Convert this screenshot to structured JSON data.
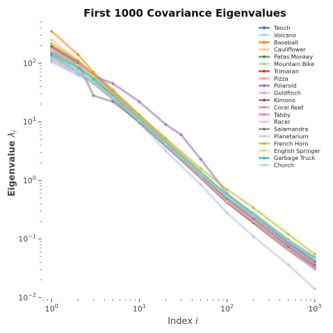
{
  "chart_data": {
    "type": "line",
    "title": "First 1000 Covariance Eigenvalues",
    "xlabel": "Index",
    "xlabel_var": "i",
    "ylabel": "Eigenvalue",
    "ylabel_var": "λ",
    "ylabel_sub": "i",
    "x_scale": "log",
    "y_scale": "log",
    "xlim": [
      0.8,
      1100
    ],
    "ylim": [
      0.01,
      500
    ],
    "x_ticks": [
      {
        "value": 1,
        "base": "10",
        "exp": "0"
      },
      {
        "value": 10,
        "base": "10",
        "exp": "1"
      },
      {
        "value": 100,
        "base": "10",
        "exp": "2"
      },
      {
        "value": 1000,
        "base": "10",
        "exp": "3"
      }
    ],
    "y_ticks": [
      {
        "value": 0.01,
        "base": "10",
        "exp": "−2"
      },
      {
        "value": 0.1,
        "base": "10",
        "exp": "−1"
      },
      {
        "value": 1,
        "base": "10",
        "exp": "0"
      },
      {
        "value": 10,
        "base": "10",
        "exp": "1"
      },
      {
        "value": 100,
        "base": "10",
        "exp": "2"
      }
    ],
    "grid": false,
    "legend_position": "top-right",
    "series": [
      {
        "name": "Tench",
        "color": "#1f77b4",
        "points": [
          [
            1,
            165
          ],
          [
            2,
            95
          ],
          [
            3,
            65
          ],
          [
            5,
            32
          ],
          [
            10,
            12
          ],
          [
            20,
            4.5
          ],
          [
            50,
            1.3
          ],
          [
            100,
            0.5
          ],
          [
            200,
            0.24
          ],
          [
            500,
            0.085
          ],
          [
            1000,
            0.042
          ]
        ]
      },
      {
        "name": "Volcano",
        "color": "#aec7e8",
        "points": [
          [
            1,
            105
          ],
          [
            2,
            62
          ],
          [
            3,
            48
          ],
          [
            5,
            25
          ],
          [
            10,
            9.5
          ],
          [
            20,
            3.2
          ],
          [
            50,
            0.85
          ],
          [
            100,
            0.28
          ],
          [
            200,
            0.11
          ],
          [
            500,
            0.036
          ],
          [
            1000,
            0.014
          ]
        ]
      },
      {
        "name": "Baseball",
        "color": "#ff7f0e",
        "points": [
          [
            1,
            350
          ],
          [
            2,
            140
          ],
          [
            3,
            70
          ],
          [
            5,
            35
          ],
          [
            10,
            13
          ],
          [
            20,
            5
          ],
          [
            50,
            1.4
          ],
          [
            100,
            0.55
          ],
          [
            200,
            0.26
          ],
          [
            500,
            0.09
          ],
          [
            1000,
            0.045
          ]
        ]
      },
      {
        "name": "Cauliflower",
        "color": "#ffbb78",
        "points": [
          [
            1,
            250
          ],
          [
            2,
            110
          ],
          [
            3,
            60
          ],
          [
            5,
            30
          ],
          [
            10,
            11
          ],
          [
            20,
            4.2
          ],
          [
            50,
            1.25
          ],
          [
            100,
            0.5
          ],
          [
            200,
            0.23
          ],
          [
            500,
            0.08
          ],
          [
            1000,
            0.038
          ]
        ]
      },
      {
        "name": "Patas Monkey",
        "color": "#2ca02c",
        "points": [
          [
            1,
            160
          ],
          [
            2,
            95
          ],
          [
            3,
            58
          ],
          [
            5,
            28
          ],
          [
            10,
            11.5
          ],
          [
            20,
            4.5
          ],
          [
            50,
            1.35
          ],
          [
            100,
            0.55
          ],
          [
            200,
            0.26
          ],
          [
            500,
            0.09
          ],
          [
            1000,
            0.046
          ]
        ]
      },
      {
        "name": "Mountain Bike",
        "color": "#98df8a",
        "points": [
          [
            1,
            145
          ],
          [
            2,
            85
          ],
          [
            3,
            55
          ],
          [
            5,
            27
          ],
          [
            10,
            10.5
          ],
          [
            20,
            4.2
          ],
          [
            50,
            1.3
          ],
          [
            100,
            0.52
          ],
          [
            200,
            0.25
          ],
          [
            500,
            0.088
          ],
          [
            1000,
            0.044
          ]
        ]
      },
      {
        "name": "Trimaran",
        "color": "#d62728",
        "points": [
          [
            1,
            195
          ],
          [
            2,
            105
          ],
          [
            3,
            62
          ],
          [
            5,
            30
          ],
          [
            10,
            11
          ],
          [
            20,
            4.1
          ],
          [
            50,
            1.15
          ],
          [
            100,
            0.42
          ],
          [
            200,
            0.19
          ],
          [
            500,
            0.065
          ],
          [
            1000,
            0.033
          ]
        ]
      },
      {
        "name": "Pizza",
        "color": "#ff9896",
        "points": [
          [
            1,
            175
          ],
          [
            2,
            98
          ],
          [
            3,
            62
          ],
          [
            5,
            30
          ],
          [
            10,
            11.5
          ],
          [
            20,
            4.4
          ],
          [
            50,
            1.3
          ],
          [
            100,
            0.5
          ],
          [
            200,
            0.23
          ],
          [
            500,
            0.077
          ],
          [
            1000,
            0.036
          ]
        ]
      },
      {
        "name": "Polaroid",
        "color": "#9467bd",
        "points": [
          [
            1,
            150
          ],
          [
            2,
            90
          ],
          [
            3,
            60
          ],
          [
            5,
            45
          ],
          [
            10,
            22
          ],
          [
            20,
            9
          ],
          [
            30,
            6
          ],
          [
            50,
            2.3
          ],
          [
            100,
            0.6
          ],
          [
            200,
            0.26
          ],
          [
            500,
            0.085
          ],
          [
            1000,
            0.04
          ]
        ]
      },
      {
        "name": "Goldfinch",
        "color": "#c5b0d5",
        "points": [
          [
            1,
            110
          ],
          [
            2,
            65
          ],
          [
            3,
            45
          ],
          [
            5,
            24
          ],
          [
            10,
            10
          ],
          [
            20,
            4
          ],
          [
            50,
            1.2
          ],
          [
            100,
            0.47
          ],
          [
            200,
            0.22
          ],
          [
            500,
            0.075
          ],
          [
            1000,
            0.036
          ]
        ]
      },
      {
        "name": "Kimono",
        "color": "#8c564b",
        "points": [
          [
            1,
            130
          ],
          [
            2,
            72
          ],
          [
            3,
            48
          ],
          [
            5,
            26
          ],
          [
            10,
            10
          ],
          [
            20,
            3.9
          ],
          [
            50,
            1.1
          ],
          [
            100,
            0.42
          ],
          [
            200,
            0.19
          ],
          [
            500,
            0.065
          ],
          [
            1000,
            0.031
          ]
        ]
      },
      {
        "name": "Coral Reef",
        "color": "#c49c94",
        "points": [
          [
            1,
            120
          ],
          [
            2,
            70
          ],
          [
            3,
            46
          ],
          [
            5,
            24
          ],
          [
            10,
            9.8
          ],
          [
            20,
            3.8
          ],
          [
            50,
            1.1
          ],
          [
            100,
            0.42
          ],
          [
            200,
            0.2
          ],
          [
            500,
            0.068
          ],
          [
            1000,
            0.033
          ]
        ]
      },
      {
        "name": "Tabby",
        "color": "#e377c2",
        "points": [
          [
            1,
            185
          ],
          [
            2,
            102
          ],
          [
            3,
            60
          ],
          [
            5,
            29
          ],
          [
            10,
            11
          ],
          [
            20,
            4.2
          ],
          [
            50,
            1.2
          ],
          [
            100,
            0.45
          ],
          [
            200,
            0.2
          ],
          [
            500,
            0.068
          ],
          [
            1000,
            0.032
          ]
        ]
      },
      {
        "name": "Racer",
        "color": "#f7b6d2",
        "points": [
          [
            1,
            175
          ],
          [
            2,
            98
          ],
          [
            3,
            60
          ],
          [
            5,
            30
          ],
          [
            10,
            11.5
          ],
          [
            20,
            4.4
          ],
          [
            50,
            1.3
          ],
          [
            100,
            0.5
          ],
          [
            200,
            0.23
          ],
          [
            500,
            0.078
          ],
          [
            1000,
            0.037
          ]
        ]
      },
      {
        "name": "Salamandra",
        "color": "#7f7f7f",
        "points": [
          [
            1,
            190
          ],
          [
            2,
            100
          ],
          [
            3,
            28
          ],
          [
            5,
            22
          ],
          [
            10,
            10
          ],
          [
            20,
            4
          ],
          [
            50,
            1.2
          ],
          [
            100,
            0.48
          ],
          [
            200,
            0.22
          ],
          [
            500,
            0.075
          ],
          [
            1000,
            0.036
          ]
        ]
      },
      {
        "name": "Planetarium",
        "color": "#c7c7c7",
        "points": [
          [
            1,
            125
          ],
          [
            2,
            72
          ],
          [
            3,
            48
          ],
          [
            5,
            26
          ],
          [
            10,
            10.5
          ],
          [
            20,
            4.1
          ],
          [
            50,
            1.15
          ],
          [
            100,
            0.44
          ],
          [
            200,
            0.2
          ],
          [
            500,
            0.065
          ],
          [
            1000,
            0.03
          ]
        ]
      },
      {
        "name": "French Horn",
        "color": "#bcbd22",
        "points": [
          [
            1,
            215
          ],
          [
            2,
            112
          ],
          [
            3,
            65
          ],
          [
            5,
            33
          ],
          [
            10,
            13
          ],
          [
            20,
            5.2
          ],
          [
            50,
            1.6
          ],
          [
            100,
            0.7
          ],
          [
            200,
            0.34
          ],
          [
            500,
            0.12
          ],
          [
            1000,
            0.055
          ]
        ]
      },
      {
        "name": "English Springer",
        "color": "#dbdb8d",
        "points": [
          [
            1,
            160
          ],
          [
            2,
            92
          ],
          [
            3,
            58
          ],
          [
            5,
            29
          ],
          [
            10,
            11.5
          ],
          [
            20,
            4.6
          ],
          [
            50,
            1.4
          ],
          [
            100,
            0.58
          ],
          [
            200,
            0.28
          ],
          [
            500,
            0.1
          ],
          [
            1000,
            0.05
          ]
        ]
      },
      {
        "name": "Garbage Truck",
        "color": "#17becf",
        "points": [
          [
            1,
            140
          ],
          [
            2,
            82
          ],
          [
            3,
            54
          ],
          [
            5,
            28
          ],
          [
            10,
            11
          ],
          [
            20,
            4.4
          ],
          [
            50,
            1.35
          ],
          [
            100,
            0.56
          ],
          [
            200,
            0.27
          ],
          [
            500,
            0.095
          ],
          [
            1000,
            0.048
          ]
        ]
      },
      {
        "name": "Church",
        "color": "#9edae5",
        "points": [
          [
            1,
            120
          ],
          [
            2,
            70
          ],
          [
            3,
            48
          ],
          [
            5,
            26
          ],
          [
            10,
            10.5
          ],
          [
            20,
            4.2
          ],
          [
            50,
            1.3
          ],
          [
            100,
            0.54
          ],
          [
            200,
            0.26
          ],
          [
            500,
            0.092
          ],
          [
            1000,
            0.046
          ]
        ]
      }
    ]
  }
}
